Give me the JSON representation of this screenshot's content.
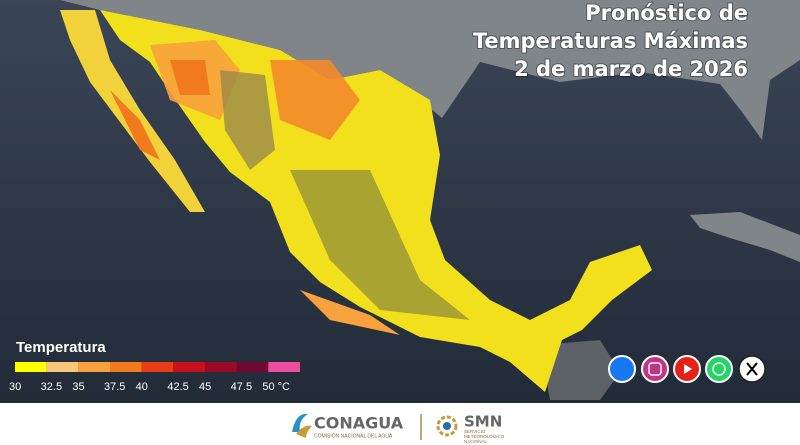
{
  "header": {
    "title": [
      "Pronóstico de",
      "Temperaturas Máximas",
      "2 de marzo de 2026"
    ]
  },
  "legend": {
    "title": "Temperatura",
    "labels": [
      "30",
      "32.5",
      "35",
      "37.5",
      "40",
      "42.5",
      "45",
      "47.5",
      "50 °C"
    ],
    "colors": [
      "#ffff00",
      "#f9c77c",
      "#f7a23c",
      "#f07a1c",
      "#e83c14",
      "#c8101a",
      "#9a0a26",
      "#6e0a30",
      "#ee4ea0"
    ]
  },
  "footer": {
    "conagua": "CONAGUA",
    "conagua_sub": "COMISIÓN NACIONAL DEL AGUA",
    "smn": "SMN",
    "smn_sub": [
      "SERVICIO",
      "METEOROLÓGICO",
      "NACIONAL"
    ]
  }
}
